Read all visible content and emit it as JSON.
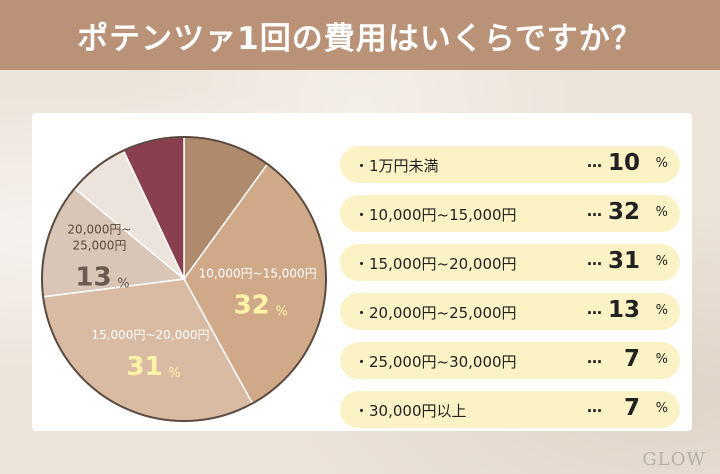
{
  "header": {
    "title": "ポテンツァ1回の費用はいくらですか？"
  },
  "colors": {
    "header_bg": "#b99277",
    "pill_bg": "#fbf2c6",
    "slice_colors": [
      "#b08a6c",
      "#d0aa88",
      "#d9bba3",
      "#d9c6b7",
      "#ebe3dc",
      "#8a3f4e"
    ]
  },
  "chart_data": {
    "type": "pie",
    "labels": [
      "1万円未満",
      "10,000円~15,000円",
      "15,000円~20,000円",
      "20,000円~25,000円",
      "25,000円~30,000円",
      "30,000円以上"
    ],
    "values": [
      10,
      32,
      31,
      13,
      7,
      7
    ],
    "unit": "%",
    "pie_labels": [
      null,
      {
        "line1": "10,000円~15,000円",
        "value": "32",
        "unit": "%"
      },
      {
        "line1": "15,000円~20,000円",
        "value": "31",
        "unit": "%"
      },
      {
        "line1": "20,000円~",
        "line2": "25,000円",
        "value": "13",
        "unit": "%"
      },
      null,
      null
    ]
  },
  "legend": {
    "bullet": "・",
    "dots": "…",
    "unit": "%",
    "items": [
      {
        "label": "1万円未満",
        "value": "10"
      },
      {
        "label": "10,000円~15,000円",
        "value": "32"
      },
      {
        "label": "15,000円~20,000円",
        "value": "31"
      },
      {
        "label": "20,000円~25,000円",
        "value": "13"
      },
      {
        "label": "25,000円~30,000円",
        "value": "7"
      },
      {
        "label": "30,000円以上",
        "value": "7"
      }
    ]
  },
  "footer": {
    "logo": "GLOW"
  }
}
